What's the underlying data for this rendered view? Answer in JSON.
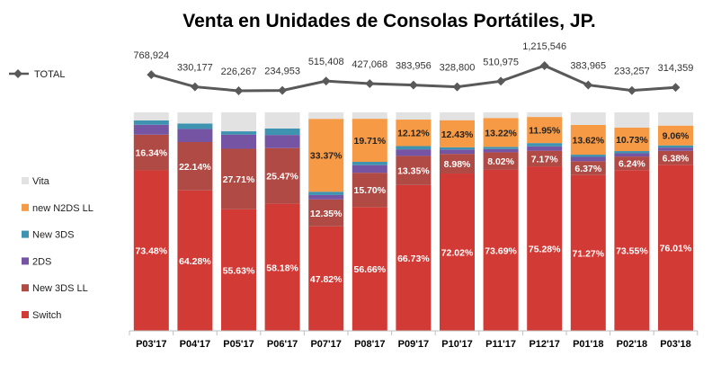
{
  "chart_data": {
    "type": "bar",
    "stacked": true,
    "title": "Venta en Unidades de Consolas Portátiles, JP.",
    "categories": [
      "P03'17",
      "P04'17",
      "P05'17",
      "P06'17",
      "P07'17",
      "P08'17",
      "P09'17",
      "P10'17",
      "P11'17",
      "P12'17",
      "P01'18",
      "P02'18",
      "P03'18"
    ],
    "series": [
      {
        "name": "Switch",
        "color": "#d23a36",
        "values": [
          73.48,
          64.28,
          55.63,
          58.18,
          47.82,
          56.66,
          66.73,
          72.02,
          73.69,
          75.28,
          71.27,
          73.55,
          76.01
        ],
        "labels": [
          "73.48%",
          "64.28%",
          "55.63%",
          "58.18%",
          "47.82%",
          "56.66%",
          "66.73%",
          "72.02%",
          "73.69%",
          "75.28%",
          "71.27%",
          "73.55%",
          "76.01%"
        ]
      },
      {
        "name": "New 3DS LL",
        "color": "#b04a45",
        "values": [
          16.34,
          22.14,
          27.71,
          25.47,
          12.35,
          15.7,
          13.35,
          8.98,
          8.02,
          7.17,
          6.37,
          6.24,
          6.38
        ],
        "labels": [
          "16.34%",
          "22.14%",
          "27.71%",
          "25.47%",
          "12.35%",
          "15.70%",
          "13.35%",
          "8.98%",
          "8.02%",
          "7.17%",
          "6.37%",
          "6.24%",
          "6.38%"
        ]
      },
      {
        "name": "2DS",
        "color": "#7654a4",
        "values": [
          4.5,
          6.0,
          6.5,
          6.0,
          2.0,
          3.5,
          3.0,
          2.0,
          1.5,
          2.0,
          2.0,
          1.5,
          1.5
        ],
        "labels": []
      },
      {
        "name": "New 3DS",
        "color": "#3e93b0",
        "values": [
          2.0,
          2.5,
          1.5,
          3.0,
          1.5,
          1.5,
          1.5,
          1.0,
          1.0,
          1.5,
          1.0,
          1.0,
          1.0
        ],
        "labels": []
      },
      {
        "name": "new N2DS LL",
        "color": "#f79a45",
        "values": [
          0,
          0,
          0,
          0,
          33.37,
          19.71,
          12.12,
          12.43,
          13.22,
          11.95,
          13.62,
          10.73,
          9.06
        ],
        "labels": [
          "",
          "",
          "",
          "",
          "33.37%",
          "19.71%",
          "12.12%",
          "12.43%",
          "13.22%",
          "11.95%",
          "13.62%",
          "10.73%",
          "9.06%"
        ]
      },
      {
        "name": "Vita",
        "color": "#e2e2e2",
        "values": [
          3.68,
          5.08,
          8.66,
          7.35,
          2.96,
          2.93,
          3.3,
          3.57,
          2.57,
          2.1,
          5.74,
          6.98,
          6.05
        ],
        "labels": []
      }
    ],
    "total_line": {
      "name": "TOTAL",
      "color": "#595959",
      "values": [
        768924,
        330177,
        226267,
        234953,
        515408,
        427068,
        383956,
        328800,
        510975,
        1215546,
        383965,
        233257,
        314359
      ],
      "labels": [
        "768,924",
        "330,177",
        "226,267",
        "234,953",
        "515,408",
        "427,068",
        "383,956",
        "328,800",
        "510,975",
        "1,215,546",
        "383,965",
        "233,257",
        "314,359"
      ]
    },
    "legend": [
      "Vita",
      "new N2DS LL",
      "New 3DS",
      "2DS",
      "New 3DS LL",
      "Switch"
    ],
    "legend_position": "left",
    "ylim": [
      0,
      100
    ],
    "grid": false
  }
}
